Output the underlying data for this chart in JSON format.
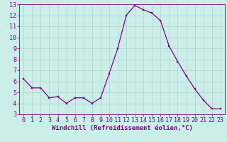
{
  "x": [
    0,
    1,
    2,
    3,
    4,
    5,
    6,
    7,
    8,
    9,
    10,
    11,
    12,
    13,
    14,
    15,
    16,
    17,
    18,
    19,
    20,
    21,
    22,
    23
  ],
  "y": [
    6.2,
    5.4,
    5.4,
    4.5,
    4.6,
    4.0,
    4.5,
    4.5,
    4.0,
    4.5,
    6.7,
    9.0,
    12.0,
    12.9,
    12.5,
    12.2,
    11.5,
    9.2,
    7.8,
    6.5,
    5.3,
    4.3,
    3.5,
    3.5
  ],
  "line_color": "#800080",
  "marker": "s",
  "marker_size": 2,
  "bg_color": "#cceee8",
  "grid_color": "#aad4ce",
  "xlabel": "Windchill (Refroidissement éolien,°C)",
  "xlim": [
    -0.5,
    23.5
  ],
  "ylim": [
    3,
    13
  ],
  "yticks": [
    3,
    4,
    5,
    6,
    7,
    8,
    9,
    10,
    11,
    12,
    13
  ],
  "xticks": [
    0,
    1,
    2,
    3,
    4,
    5,
    6,
    7,
    8,
    9,
    10,
    11,
    12,
    13,
    14,
    15,
    16,
    17,
    18,
    19,
    20,
    21,
    22,
    23
  ],
  "tick_color": "#800080",
  "label_color": "#800080",
  "spine_color": "#800080",
  "xlabel_fontsize": 6.5,
  "tick_fontsize": 6
}
